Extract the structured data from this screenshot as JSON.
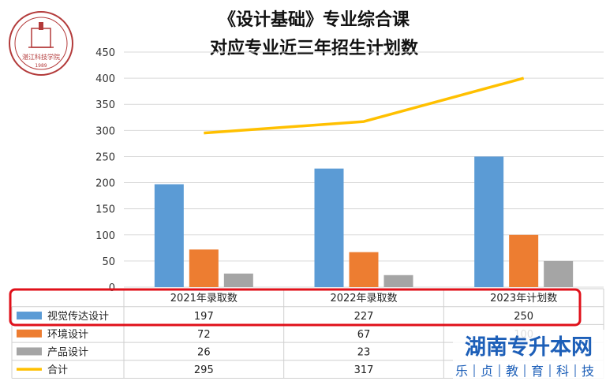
{
  "chart_data": {
    "type": "bar",
    "title_line1": "《设计基础》专业综合课",
    "title_line2": "对应专业近三年招生计划数",
    "categories": [
      "2021年录取数",
      "2022年录取数",
      "2023年计划数"
    ],
    "series": [
      {
        "name": "视觉传达设计",
        "type": "bar",
        "color": "#5b9bd5",
        "values": [
          197,
          227,
          250
        ]
      },
      {
        "name": "环境设计",
        "type": "bar",
        "color": "#ed7d31",
        "values": [
          72,
          67,
          100
        ]
      },
      {
        "name": "产品设计",
        "type": "bar",
        "color": "#a5a5a5",
        "values": [
          26,
          23,
          50
        ]
      },
      {
        "name": "合计",
        "type": "line",
        "color": "#ffc000",
        "values": [
          295,
          317,
          400
        ]
      }
    ],
    "table_values": [
      [
        "197",
        "227",
        "250"
      ],
      [
        "72",
        "67",
        "100"
      ],
      [
        "26",
        "23",
        ""
      ],
      [
        "295",
        "317",
        ""
      ]
    ],
    "y_ticks": [
      "0",
      "50",
      "100",
      "150",
      "200",
      "250",
      "300",
      "350",
      "400",
      "450"
    ],
    "ylim": [
      0,
      450
    ],
    "grid": true,
    "legend": "data-table-left"
  },
  "watermark": {
    "line1": "湖南专升本网",
    "line2": [
      "乐",
      "贞",
      "教",
      "育",
      "科",
      "技"
    ]
  },
  "logo": {
    "text": "湛江科技学院",
    "year": "1989"
  }
}
